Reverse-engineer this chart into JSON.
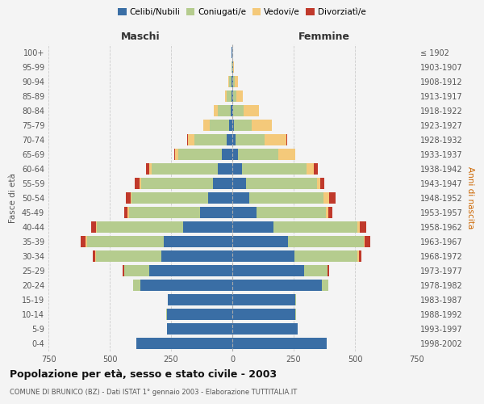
{
  "age_groups": [
    "0-4",
    "5-9",
    "10-14",
    "15-19",
    "20-24",
    "25-29",
    "30-34",
    "35-39",
    "40-44",
    "45-49",
    "50-54",
    "55-59",
    "60-64",
    "65-69",
    "70-74",
    "75-79",
    "80-84",
    "85-89",
    "90-94",
    "95-99",
    "100+"
  ],
  "birth_years": [
    "1998-2002",
    "1993-1997",
    "1988-1992",
    "1983-1987",
    "1978-1982",
    "1973-1977",
    "1968-1972",
    "1963-1967",
    "1958-1962",
    "1953-1957",
    "1948-1952",
    "1943-1947",
    "1938-1942",
    "1933-1937",
    "1928-1932",
    "1923-1927",
    "1918-1922",
    "1913-1917",
    "1908-1912",
    "1903-1907",
    "≤ 1902"
  ],
  "maschi_celibi": [
    390,
    265,
    268,
    262,
    375,
    340,
    290,
    278,
    200,
    130,
    98,
    78,
    58,
    42,
    22,
    12,
    6,
    4,
    2,
    1,
    2
  ],
  "maschi_coniugati": [
    0,
    0,
    1,
    2,
    28,
    100,
    265,
    315,
    352,
    292,
    312,
    295,
    272,
    178,
    132,
    80,
    52,
    18,
    12,
    2,
    0
  ],
  "maschi_vedovi": [
    0,
    0,
    0,
    0,
    1,
    2,
    5,
    5,
    5,
    5,
    5,
    5,
    8,
    15,
    28,
    25,
    18,
    8,
    4,
    0,
    0
  ],
  "maschi_divorziati": [
    0,
    0,
    0,
    0,
    2,
    5,
    10,
    20,
    20,
    15,
    20,
    20,
    15,
    2,
    2,
    0,
    0,
    0,
    0,
    0,
    0
  ],
  "femmine_celibi": [
    385,
    268,
    258,
    258,
    365,
    292,
    252,
    228,
    168,
    100,
    68,
    55,
    38,
    22,
    12,
    8,
    4,
    4,
    2,
    2,
    1
  ],
  "femmine_coniugati": [
    0,
    0,
    1,
    2,
    25,
    95,
    258,
    308,
    342,
    282,
    305,
    292,
    265,
    165,
    120,
    72,
    42,
    12,
    8,
    2,
    0
  ],
  "femmine_vedovi": [
    0,
    0,
    0,
    0,
    1,
    2,
    5,
    5,
    10,
    10,
    22,
    12,
    28,
    68,
    90,
    82,
    62,
    28,
    12,
    2,
    0
  ],
  "femmine_divorziati": [
    0,
    0,
    0,
    0,
    2,
    5,
    10,
    20,
    25,
    15,
    25,
    15,
    18,
    2,
    2,
    0,
    0,
    0,
    0,
    0,
    0
  ],
  "colors": {
    "celibi": "#3a6ea5",
    "coniugati": "#b5cc8e",
    "vedovi": "#f4c97a",
    "divorziati": "#c0392b"
  },
  "bg_color": "#f4f4f4",
  "grid_color": "#cccccc",
  "title": "Popolazione per età, sesso e stato civile - 2003",
  "subtitle": "COMUNE DI BRUNICO (BZ) - Dati ISTAT 1° gennaio 2003 - Elaborazione TUTTITALIA.IT",
  "xlabel_left": "Maschi",
  "xlabel_right": "Femmine",
  "ylabel_left": "Fasce di età",
  "ylabel_right": "Anni di nascita",
  "xlim": 750
}
